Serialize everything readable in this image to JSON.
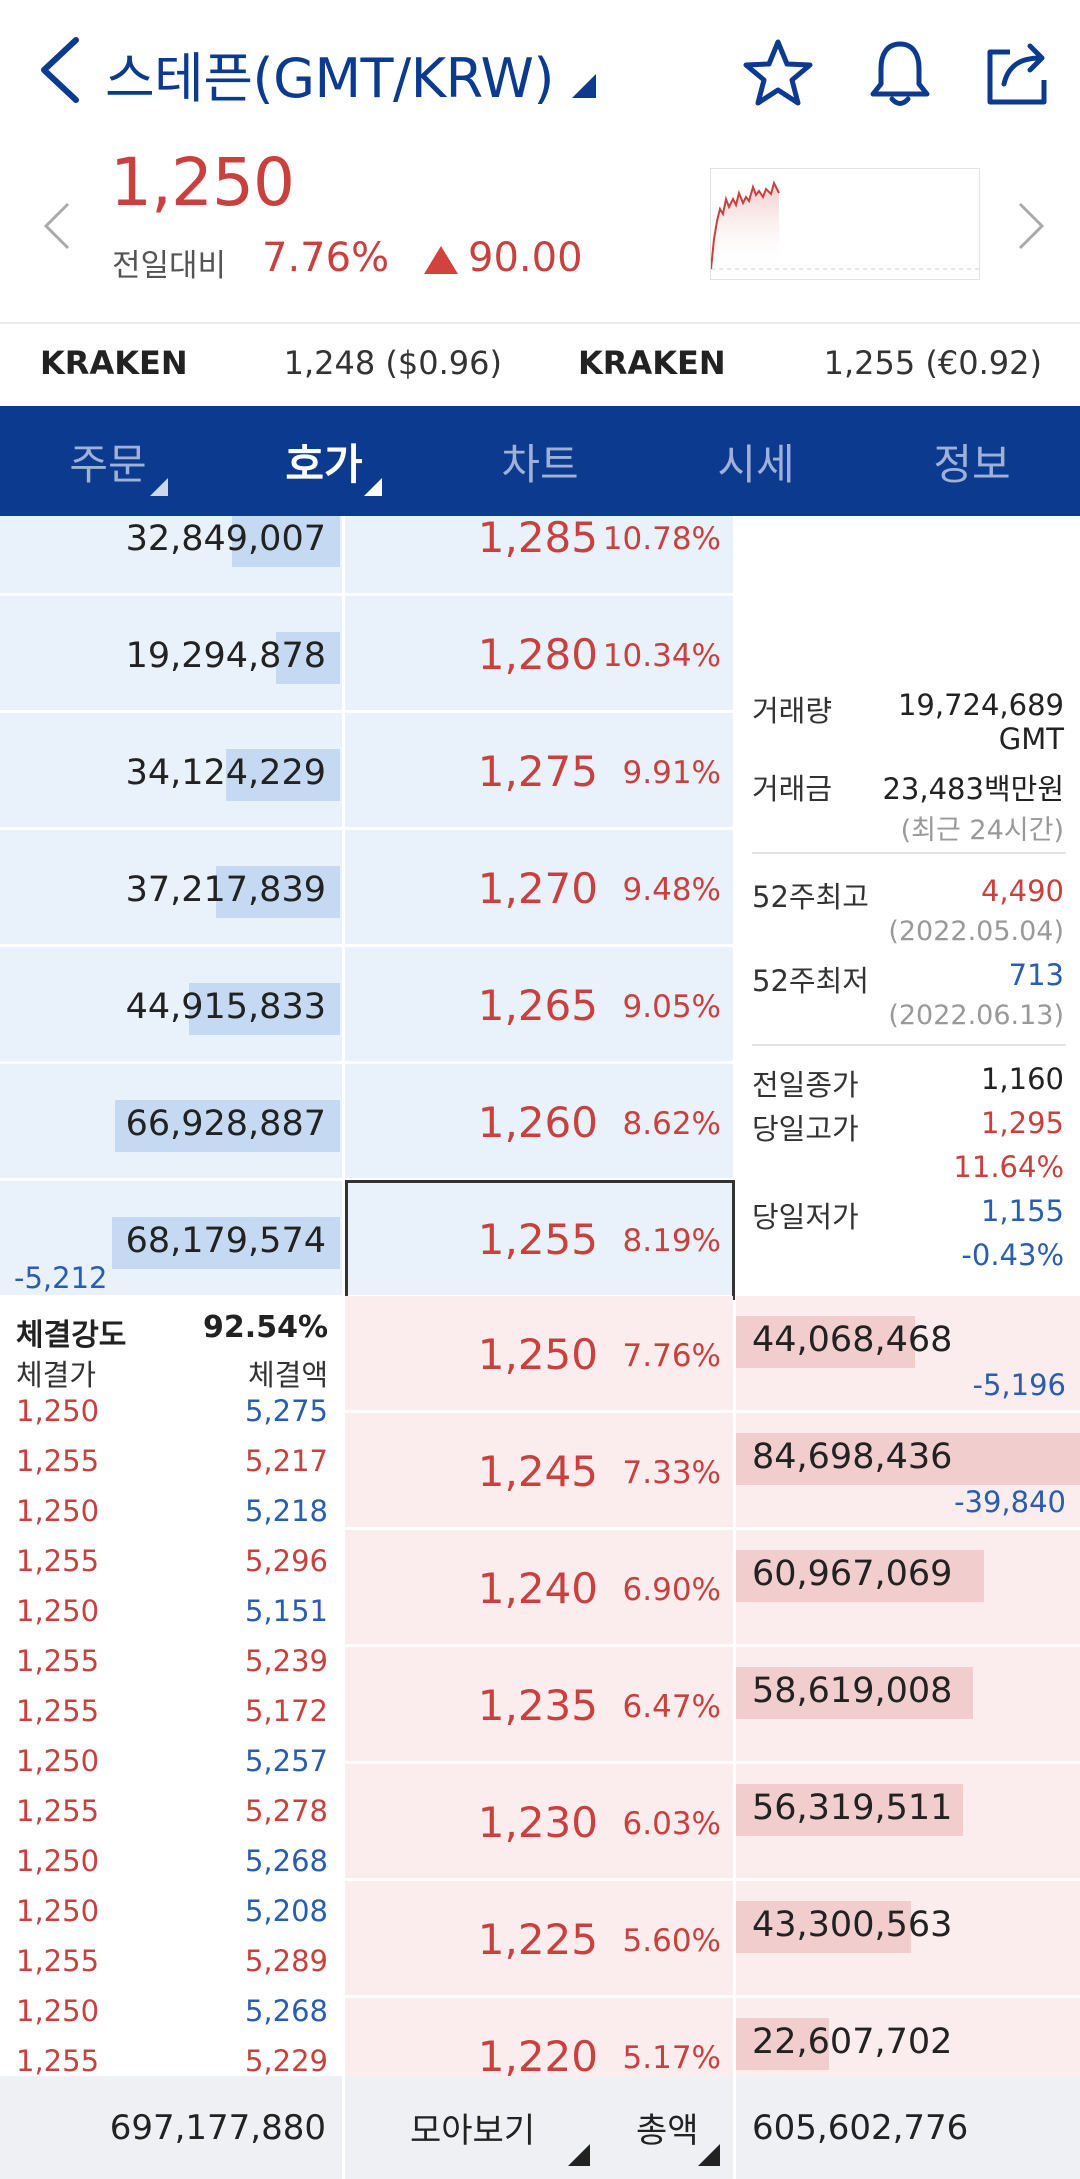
{
  "header": {
    "title": "스테픈(GMT/KRW)",
    "icons": [
      "back-icon",
      "star-icon",
      "bell-icon",
      "share-icon"
    ]
  },
  "price": {
    "current": "1,250",
    "change_label": "전일대비",
    "change_pct": "7.76%",
    "change_amount": "90.00",
    "color_up": "#c9413f",
    "color_down": "#2a5db0"
  },
  "exchanges": [
    {
      "name": "KRAKEN",
      "price": "1,248 ($0.96)"
    },
    {
      "name": "KRAKEN",
      "price": "1,255 (€0.92)"
    }
  ],
  "tabs": [
    {
      "label": "주문",
      "active": false
    },
    {
      "label": "호가",
      "active": true
    },
    {
      "label": "차트",
      "active": false
    },
    {
      "label": "시세",
      "active": false
    },
    {
      "label": "정보",
      "active": false
    }
  ],
  "asks": [
    {
      "volume": "32,849,007",
      "price": "1,285",
      "pct": "10.78%",
      "fill": 0.32
    },
    {
      "volume": "19,294,878",
      "price": "1,280",
      "pct": "10.34%",
      "fill": 0.19
    },
    {
      "volume": "34,124,229",
      "price": "1,275",
      "pct": "9.91%",
      "fill": 0.34
    },
    {
      "volume": "37,217,839",
      "price": "1,270",
      "pct": "9.48%",
      "fill": 0.37
    },
    {
      "volume": "44,915,833",
      "price": "1,265",
      "pct": "9.05%",
      "fill": 0.45
    },
    {
      "volume": "66,928,887",
      "price": "1,260",
      "pct": "8.62%",
      "fill": 0.67
    },
    {
      "volume": "68,179,574",
      "price": "1,255",
      "pct": "8.19%",
      "fill": 0.68,
      "delta": "-5,212"
    }
  ],
  "bids": [
    {
      "price": "1,250",
      "pct": "7.76%",
      "volume": "44,068,468",
      "fill": 0.52,
      "delta": "-5,196"
    },
    {
      "price": "1,245",
      "pct": "7.33%",
      "volume": "84,698,436",
      "fill": 1.0,
      "delta": "-39,840"
    },
    {
      "price": "1,240",
      "pct": "6.90%",
      "volume": "60,967,069",
      "fill": 0.72
    },
    {
      "price": "1,235",
      "pct": "6.47%",
      "volume": "58,619,008",
      "fill": 0.69
    },
    {
      "price": "1,230",
      "pct": "6.03%",
      "volume": "56,319,511",
      "fill": 0.66
    },
    {
      "price": "1,225",
      "pct": "5.60%",
      "volume": "43,300,563",
      "fill": 0.51
    },
    {
      "price": "1,220",
      "pct": "5.17%",
      "volume": "22,607,702",
      "fill": 0.27
    }
  ],
  "info": {
    "volume_label": "거래량",
    "volume_value": "19,724,689",
    "volume_unit": "GMT",
    "amount_label": "거래금",
    "amount_value": "23,483백만원",
    "period": "(최근 24시간)",
    "high52_label": "52주최고",
    "high52_value": "4,490",
    "high52_date": "(2022.05.04)",
    "low52_label": "52주최저",
    "low52_value": "713",
    "low52_date": "(2022.06.13)",
    "prev_close_label": "전일종가",
    "prev_close_value": "1,160",
    "day_high_label": "당일고가",
    "day_high_value": "1,295",
    "day_high_pct": "11.64%",
    "day_low_label": "당일저가",
    "day_low_value": "1,155",
    "day_low_pct": "-0.43%"
  },
  "trades": {
    "strength_label": "체결강도",
    "strength_value": "92.54%",
    "price_header": "체결가",
    "qty_header": "체결액",
    "rows": [
      {
        "price": "1,250",
        "qty": "5,275",
        "side": "buy"
      },
      {
        "price": "1,255",
        "qty": "5,217",
        "side": "sell"
      },
      {
        "price": "1,250",
        "qty": "5,218",
        "side": "buy"
      },
      {
        "price": "1,255",
        "qty": "5,296",
        "side": "sell"
      },
      {
        "price": "1,250",
        "qty": "5,151",
        "side": "buy"
      },
      {
        "price": "1,255",
        "qty": "5,239",
        "side": "sell"
      },
      {
        "price": "1,255",
        "qty": "5,172",
        "side": "sell"
      },
      {
        "price": "1,250",
        "qty": "5,257",
        "side": "buy"
      },
      {
        "price": "1,255",
        "qty": "5,278",
        "side": "sell"
      },
      {
        "price": "1,250",
        "qty": "5,268",
        "side": "buy"
      },
      {
        "price": "1,250",
        "qty": "5,208",
        "side": "buy"
      },
      {
        "price": "1,255",
        "qty": "5,289",
        "side": "sell"
      },
      {
        "price": "1,250",
        "qty": "5,268",
        "side": "buy"
      },
      {
        "price": "1,255",
        "qty": "5,229",
        "side": "sell"
      }
    ]
  },
  "footer": {
    "ask_total": "697,177,880",
    "group_label": "모아보기",
    "total_label": "총액",
    "bid_total": "605,602,776"
  }
}
